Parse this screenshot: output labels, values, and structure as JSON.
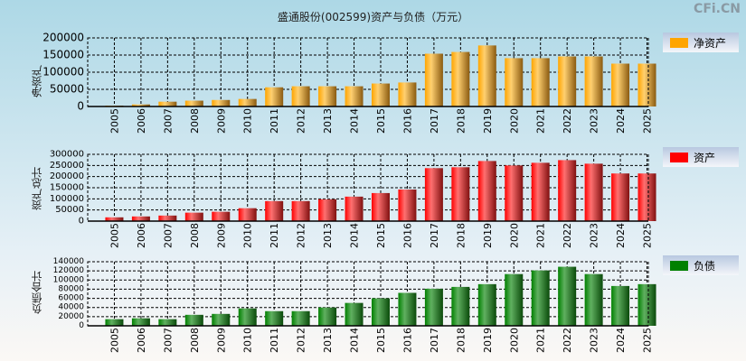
{
  "title": "盛通股份(002599)资产与负债（万元）",
  "watermark": "CFi.CN",
  "chart_data": [
    {
      "type": "bar",
      "ylabel": "净资产",
      "legend": "净资产",
      "color": "#ffa500",
      "ylim": [
        0,
        200000
      ],
      "yticks": [
        0,
        50000,
        100000,
        150000,
        200000
      ],
      "categories": [
        "2005",
        "2006",
        "2007",
        "2008",
        "2009",
        "2010",
        "2011",
        "2012",
        "2013",
        "2014",
        "2015",
        "2016",
        "2017",
        "2018",
        "2019",
        "2020",
        "2021",
        "2022",
        "2023",
        "2024",
        "2025"
      ],
      "values": [
        2600,
        6000,
        14000,
        17000,
        19000,
        22000,
        56000,
        59000,
        59000,
        59000,
        67000,
        70000,
        154000,
        159000,
        178000,
        141000,
        141000,
        146000,
        146000,
        125000,
        125000
      ]
    },
    {
      "type": "bar",
      "ylabel": "资产总计",
      "legend": "资产",
      "color": "#ff0000",
      "ylim": [
        0,
        300000
      ],
      "yticks": [
        0,
        50000,
        100000,
        150000,
        200000,
        250000,
        300000
      ],
      "categories": [
        "2005",
        "2006",
        "2007",
        "2008",
        "2009",
        "2010",
        "2011",
        "2012",
        "2013",
        "2014",
        "2015",
        "2016",
        "2017",
        "2018",
        "2019",
        "2020",
        "2021",
        "2022",
        "2023",
        "2024",
        "2025"
      ],
      "values": [
        17000,
        21000,
        25000,
        38000,
        42000,
        58000,
        90000,
        90000,
        98000,
        110000,
        126000,
        142000,
        238000,
        242000,
        270000,
        250000,
        262000,
        274000,
        258000,
        214000,
        214000
      ]
    },
    {
      "type": "bar",
      "ylabel": "负债合计",
      "legend": "负债",
      "color": "#008000",
      "ylim": [
        0,
        140000
      ],
      "yticks": [
        0,
        20000,
        40000,
        60000,
        80000,
        100000,
        120000,
        140000
      ],
      "categories": [
        "2005",
        "2006",
        "2007",
        "2008",
        "2009",
        "2010",
        "2011",
        "2012",
        "2013",
        "2014",
        "2015",
        "2016",
        "2017",
        "2018",
        "2019",
        "2020",
        "2021",
        "2022",
        "2023",
        "2024",
        "2025"
      ],
      "values": [
        14500,
        16400,
        14500,
        24000,
        26000,
        38000,
        32000,
        32000,
        40000,
        50000,
        60000,
        72000,
        81000,
        85000,
        91000,
        113000,
        121000,
        129000,
        113000,
        87000,
        91000
      ]
    }
  ]
}
